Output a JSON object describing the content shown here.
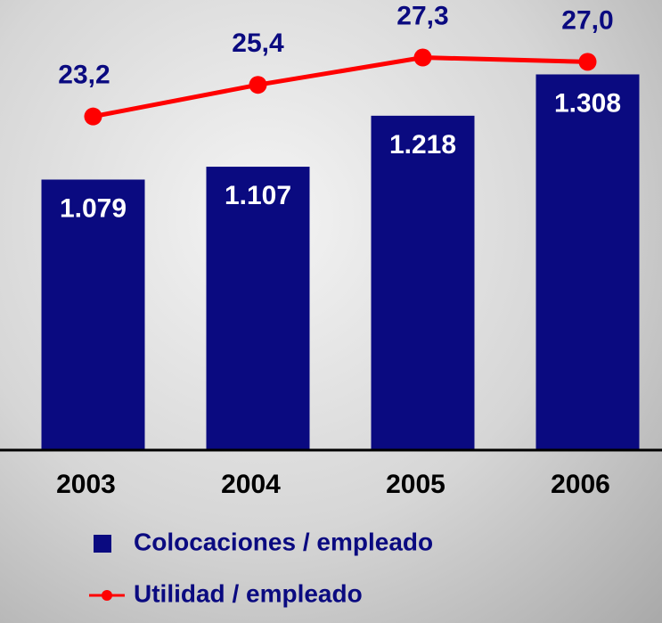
{
  "chart_data": {
    "type": "bar",
    "categories": [
      "2003",
      "2004",
      "2005",
      "2006"
    ],
    "series": [
      {
        "name": "Colocaciones / empleado",
        "type": "bar",
        "color": "#0a0a80",
        "values": [
          1079,
          1107,
          1218,
          1308
        ],
        "value_labels": [
          "1.079",
          "1.107",
          "1.218",
          "1.308"
        ]
      },
      {
        "name": "Utilidad / empleado",
        "type": "line",
        "axis": "y2",
        "color": "#ff0000",
        "values": [
          23.2,
          25.4,
          27.3,
          27.0
        ],
        "value_labels": [
          "23,2",
          "25,4",
          "27,3",
          "27,0"
        ]
      }
    ],
    "ylim": [
      490,
      1470
    ],
    "y2lim": [
      0,
      31.3
    ]
  }
}
